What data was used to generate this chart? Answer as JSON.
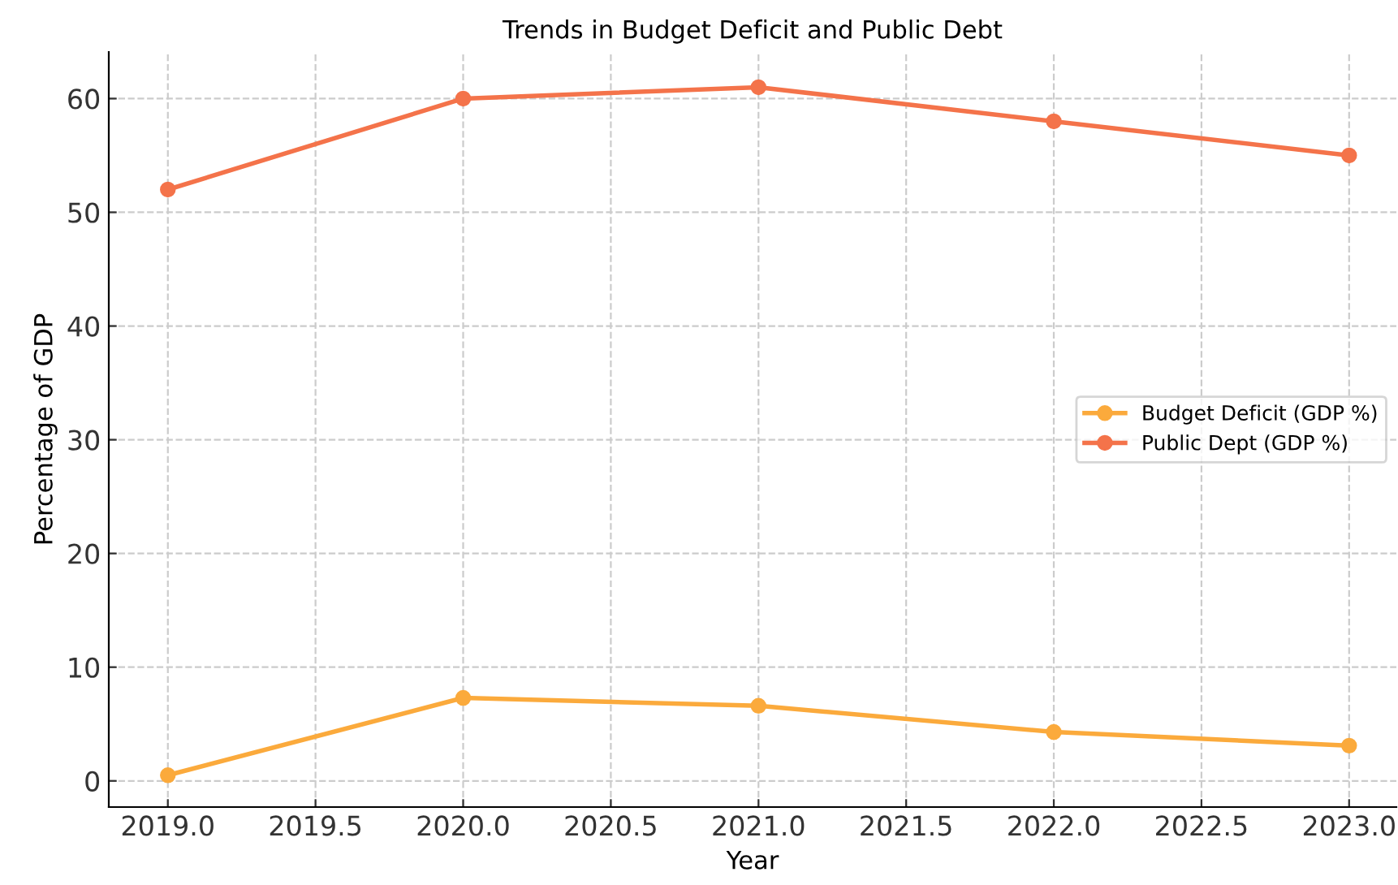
{
  "chart_data": {
    "type": "line",
    "title": "Trends in Budget Deficit and Public Debt",
    "xlabel": "Year",
    "ylabel": "Percentage of GDP",
    "x": [
      2019,
      2020,
      2021,
      2022,
      2023
    ],
    "series": [
      {
        "name": "Budget Deficit (GDP %)",
        "color": "#fbaa3c",
        "values": [
          0.5,
          7.3,
          6.6,
          4.3,
          3.1
        ]
      },
      {
        "name": "Public Dept (GDP %)",
        "color": "#f4734a",
        "values": [
          52,
          60,
          61,
          58,
          55
        ]
      }
    ],
    "xlim": [
      2018.8,
      2023.16
    ],
    "ylim": [
      -2.3,
      64.1
    ],
    "xticks": [
      {
        "value": 2019,
        "label": "2019.0"
      },
      {
        "value": 2019.5,
        "label": "2019.5"
      },
      {
        "value": 2020,
        "label": "2020.0"
      },
      {
        "value": 2020.5,
        "label": "2020.5"
      },
      {
        "value": 2021,
        "label": "2021.0"
      },
      {
        "value": 2021.5,
        "label": "2021.5"
      },
      {
        "value": 2022,
        "label": "2022.0"
      },
      {
        "value": 2022.5,
        "label": "2022.5"
      },
      {
        "value": 2023,
        "label": "2023.0"
      }
    ],
    "yticks": [
      0,
      10,
      20,
      30,
      40,
      50,
      60
    ],
    "grid": true,
    "legend": "right",
    "marker": "circle",
    "line_style": "solid"
  }
}
